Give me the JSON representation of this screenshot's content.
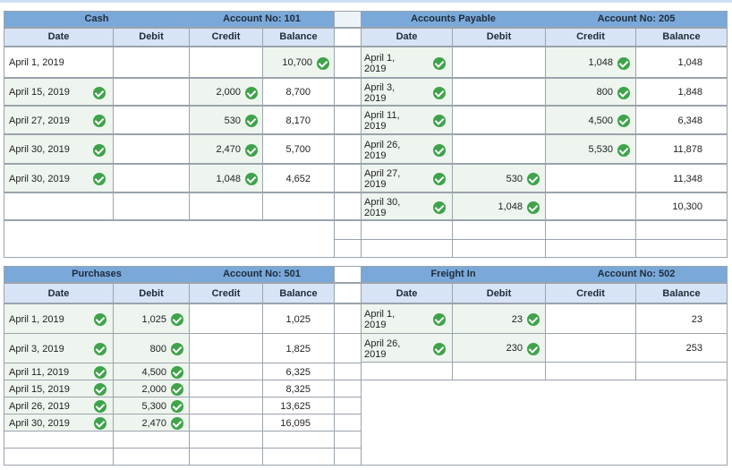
{
  "cash": {
    "title": "Cash",
    "account": "Account No: 101",
    "cols": [
      "Date",
      "Debit",
      "Credit",
      "Balance"
    ],
    "rows": [
      {
        "date": "April 1, 2019",
        "debit": "",
        "credit": "",
        "balance": "10,700"
      },
      {
        "date": "April 15, 2019",
        "debit": "",
        "credit": "2,000",
        "balance": "8,700"
      },
      {
        "date": "April 27, 2019",
        "debit": "",
        "credit": "530",
        "balance": "8,170"
      },
      {
        "date": "April 30, 2019",
        "debit": "",
        "credit": "2,470",
        "balance": "5,700"
      },
      {
        "date": "April 30, 2019",
        "debit": "",
        "credit": "1,048",
        "balance": "4,652"
      }
    ]
  },
  "ap": {
    "title": "Accounts Payable",
    "account": "Account No: 205",
    "cols": [
      "Date",
      "Debit",
      "Credit",
      "Balance"
    ],
    "rows": [
      {
        "date1": "April 1,",
        "date2": "2019",
        "debit": "",
        "credit": "1,048",
        "balance": "1,048"
      },
      {
        "date1": "April 3,",
        "date2": "2019",
        "debit": "",
        "credit": "800",
        "balance": "1,848"
      },
      {
        "date1": "April 11,",
        "date2": "2019",
        "debit": "",
        "credit": "4,500",
        "balance": "6,348"
      },
      {
        "date1": "April 26,",
        "date2": "2019",
        "debit": "",
        "credit": "5,530",
        "balance": "11,878"
      },
      {
        "date1": "April 27,",
        "date2": "2019",
        "debit": "530",
        "credit": "",
        "balance": "11,348"
      },
      {
        "date1": "April 30,",
        "date2": "2019",
        "debit": "1,048",
        "credit": "",
        "balance": "10,300"
      }
    ]
  },
  "purchases": {
    "title": "Purchases",
    "account": "Account No: 501",
    "cols": [
      "Date",
      "Debit",
      "Credit",
      "Balance"
    ],
    "rows": [
      {
        "date": "April 1, 2019",
        "debit": "1,025",
        "balance": "1,025"
      },
      {
        "date": "April 3, 2019",
        "debit": "800",
        "balance": "1,825"
      },
      {
        "date": "April 11, 2019",
        "debit": "4,500",
        "balance": "6,325"
      },
      {
        "date": "April 15, 2019",
        "debit": "2,000",
        "balance": "8,325"
      },
      {
        "date": "April 26, 2019",
        "debit": "5,300",
        "balance": "13,625"
      },
      {
        "date": "April 30, 2019",
        "debit": "2,470",
        "balance": "16,095"
      }
    ]
  },
  "freight": {
    "title": "Freight In",
    "account": "Account No: 502",
    "cols": [
      "Date",
      "Debit",
      "Credit",
      "Balance"
    ],
    "rows": [
      {
        "date1": "April 1,",
        "date2": "2019",
        "debit": "23",
        "balance": "23"
      },
      {
        "date1": "April 26,",
        "date2": "2019",
        "debit": "230",
        "balance": "253"
      }
    ]
  }
}
